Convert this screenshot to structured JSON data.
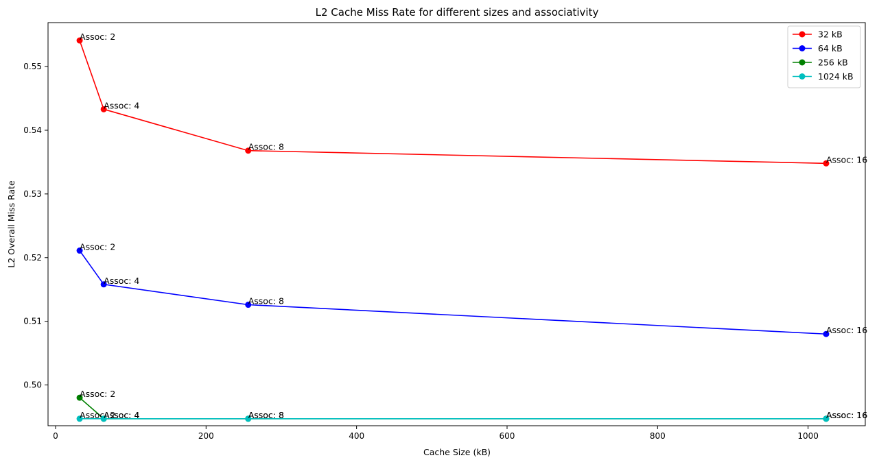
{
  "chart_data": {
    "type": "line",
    "title": "L2 Cache Miss Rate for different sizes and associativity",
    "xlabel": "Cache Size (kB)",
    "ylabel": "L2 Overall Miss Rate",
    "xlim": [
      -10,
      1076
    ],
    "ylim": [
      0.4936,
      0.5569
    ],
    "xticks": [
      0,
      200,
      400,
      600,
      800,
      1000
    ],
    "yticks": [
      0.5,
      0.51,
      0.52,
      0.53,
      0.54,
      0.55
    ],
    "ytick_labels": [
      "0.50",
      "0.51",
      "0.52",
      "0.53",
      "0.54",
      "0.55"
    ],
    "grid": false,
    "legend_position": "top-right",
    "x": [
      32,
      64,
      256,
      1024
    ],
    "point_labels": [
      "Assoc: 2",
      "Assoc: 4",
      "Assoc: 8",
      "Assoc: 16"
    ],
    "series": [
      {
        "name": "32 kB",
        "color": "#ff0000",
        "values": [
          0.5541,
          0.5433,
          0.5368,
          0.5348
        ]
      },
      {
        "name": "64 kB",
        "color": "#0000ff",
        "values": [
          0.5211,
          0.5158,
          0.5126,
          0.508
        ]
      },
      {
        "name": "256 kB",
        "color": "#008000",
        "values": [
          0.498,
          0.4947,
          0.4947,
          0.4947
        ]
      },
      {
        "name": "1024 kB",
        "color": "#00bfbf",
        "values": [
          0.4947,
          0.4947,
          0.4947,
          0.4947
        ]
      }
    ]
  }
}
